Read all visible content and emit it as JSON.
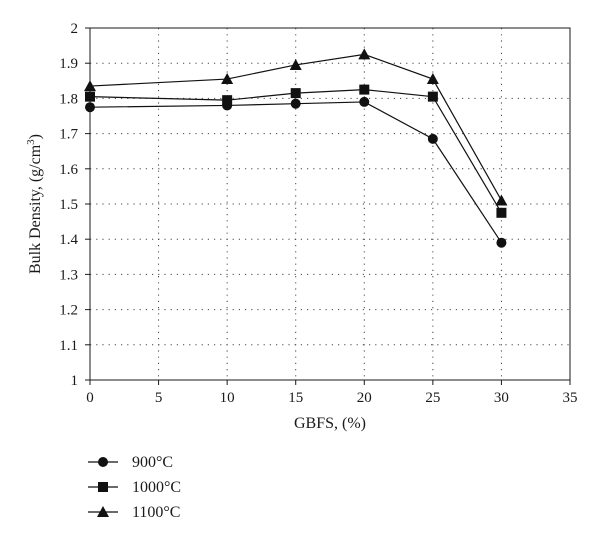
{
  "chart_data": {
    "type": "line",
    "title": "",
    "xlabel": "GBFS, (%)",
    "ylabel_main": "Bulk Density, (g/cm",
    "ylabel_sup": "3",
    "ylabel_close": ")",
    "xlim": [
      0,
      35
    ],
    "ylim": [
      1,
      2
    ],
    "x_ticks": [
      0,
      5,
      10,
      15,
      20,
      25,
      30,
      35
    ],
    "y_ticks": [
      "1",
      "1.1",
      "1.2",
      "1.3",
      "1.4",
      "1.5",
      "1.6",
      "1.7",
      "1.8",
      "1.9",
      "2"
    ],
    "grid": "dotted",
    "legend_position": "below-left",
    "x": [
      0,
      10,
      15,
      20,
      25,
      30
    ],
    "series": [
      {
        "name": "900°C",
        "marker": "circle",
        "values": [
          1.775,
          1.78,
          1.785,
          1.79,
          1.685,
          1.39
        ]
      },
      {
        "name": "1000°C",
        "marker": "square",
        "values": [
          1.805,
          1.795,
          1.815,
          1.825,
          1.805,
          1.475
        ]
      },
      {
        "name": "1100°C",
        "marker": "triangle",
        "values": [
          1.835,
          1.855,
          1.895,
          1.925,
          1.855,
          1.51
        ]
      }
    ]
  }
}
